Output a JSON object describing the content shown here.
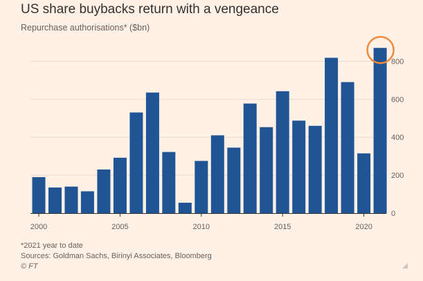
{
  "header": {
    "title": "US share buybacks return with a vengeance",
    "subtitle": "Repurchase authorisations* ($bn)"
  },
  "footer": {
    "note": "*2021 year to date",
    "sources": "Sources: Goldman Sachs, Birinyi Associates, Bloomberg",
    "credit": "© FT"
  },
  "colors": {
    "bar": "#1f5594",
    "highlight_circle": "#f08a3a",
    "background": "#fff1e5",
    "grid": "#e6d9ce",
    "tick_text": "#66605c"
  },
  "chart_data": {
    "type": "bar",
    "title": "US share buybacks return with a vengeance",
    "subtitle": "Repurchase authorisations* ($bn)",
    "x": [
      2000,
      2001,
      2002,
      2003,
      2004,
      2005,
      2006,
      2007,
      2008,
      2009,
      2010,
      2011,
      2012,
      2013,
      2014,
      2015,
      2016,
      2017,
      2018,
      2019,
      2020,
      2021
    ],
    "values": [
      190,
      135,
      140,
      115,
      230,
      292,
      530,
      635,
      322,
      55,
      275,
      410,
      345,
      577,
      453,
      642,
      487,
      460,
      818,
      690,
      315,
      870
    ],
    "x_tick_labels": [
      "2000",
      "2005",
      "2010",
      "2015",
      "2020"
    ],
    "y_tick_labels": [
      "0",
      "200",
      "400",
      "600",
      "800"
    ],
    "ylim": [
      0,
      900
    ],
    "y_axis_side": "right",
    "grid": true,
    "highlight": {
      "x": 2021,
      "shape": "circle"
    }
  }
}
